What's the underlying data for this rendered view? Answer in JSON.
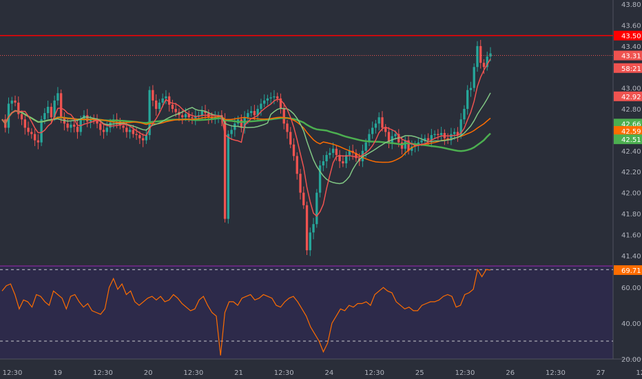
{
  "colors": {
    "background": "#2a2e39",
    "rsi_background": "#2d2a4a",
    "up_candle": "#26a69a",
    "down_candle": "#ef5350",
    "ma_fast": "#ef5350",
    "ma_mid": "#ff6d00",
    "ma_slow_light": "#81c784",
    "ma_slow": "#4caf50",
    "rsi_line": "#ff6d00",
    "level_line": "#ff0000",
    "separator": "#9c27b0"
  },
  "chart_data": [
    {
      "type": "candlestick",
      "name": "price",
      "y_ticks": [
        "43.80",
        "43.60",
        "43.40",
        "43.00",
        "42.80",
        "42.40",
        "42.20",
        "42.00",
        "41.80",
        "41.60",
        "41.40"
      ],
      "ylim": [
        41.3,
        43.84
      ],
      "price_labels": [
        {
          "text": "43.50",
          "value": 43.5,
          "color": "#ff0000"
        },
        {
          "text": "43.31",
          "value": 43.31,
          "color": "#ef5350"
        },
        {
          "text": "58:21",
          "value": 43.19,
          "color": "#ef5350"
        },
        {
          "text": "42.92",
          "value": 42.92,
          "color": "#ef5350"
        },
        {
          "text": "42.66",
          "value": 42.66,
          "color": "#4caf50"
        },
        {
          "text": "42.59",
          "value": 42.59,
          "color": "#ff6d00"
        },
        {
          "text": "42.51",
          "value": 42.51,
          "color": "#4caf50"
        }
      ],
      "levels": [
        {
          "value": 43.5,
          "style": "solid",
          "color": "#ff0000"
        },
        {
          "value": 43.31,
          "style": "dotted",
          "color": "#ef5350"
        }
      ],
      "close_series": [
        42.7,
        42.62,
        42.85,
        42.88,
        42.86,
        42.75,
        42.7,
        42.62,
        42.58,
        42.56,
        42.5,
        42.48,
        42.7,
        42.76,
        42.82,
        42.72,
        42.88,
        42.95,
        42.72,
        42.66,
        42.62,
        42.65,
        42.63,
        42.58,
        42.7,
        42.74,
        42.68,
        42.7,
        42.69,
        42.66,
        42.6,
        42.58,
        42.62,
        42.67,
        42.7,
        42.68,
        42.64,
        42.62,
        42.58,
        42.6,
        42.56,
        42.55,
        42.52,
        42.5,
        42.55,
        42.98,
        42.88,
        42.8,
        42.86,
        42.9,
        42.92,
        42.84,
        42.8,
        42.77,
        42.74,
        42.72,
        42.75,
        42.72,
        42.71,
        42.73,
        42.74,
        42.78,
        42.76,
        42.72,
        42.7,
        42.72,
        42.74,
        42.7,
        41.75,
        42.56,
        42.6,
        42.66,
        42.7,
        42.62,
        42.72,
        42.76,
        42.78,
        42.74,
        42.8,
        42.85,
        42.88,
        42.9,
        42.91,
        42.92,
        42.9,
        42.8,
        42.66,
        42.58,
        42.46,
        42.35,
        42.18,
        42.0,
        41.88,
        41.45,
        41.62,
        41.7,
        42.0,
        42.26,
        42.3,
        42.36,
        42.38,
        42.42,
        42.36,
        42.3,
        42.28,
        42.36,
        42.4,
        42.38,
        42.33,
        42.3,
        42.4,
        42.48,
        42.56,
        42.62,
        42.66,
        42.72,
        42.62,
        42.58,
        42.48,
        42.54,
        42.56,
        42.48,
        42.42,
        42.5,
        42.4,
        42.44,
        42.46,
        42.48,
        42.5,
        42.52,
        42.5,
        42.55,
        42.56,
        42.55,
        42.57,
        42.52,
        42.5,
        42.56,
        42.58,
        42.55,
        42.7,
        42.8,
        42.98,
        43.0,
        43.2,
        43.4,
        43.24,
        43.2,
        43.3,
        43.33
      ]
    },
    {
      "type": "line",
      "name": "oscillator",
      "y_ticks": [
        "60.00",
        "40.00",
        "20.00"
      ],
      "ylim": [
        20,
        72
      ],
      "levels": [
        70,
        30
      ],
      "last_value_label": "69.71",
      "values": [
        58,
        61,
        62,
        56,
        48,
        53,
        52,
        49,
        56,
        55,
        52,
        50,
        58,
        56,
        54,
        48,
        55,
        56,
        52,
        49,
        51,
        47,
        46,
        45,
        48,
        60,
        65,
        59,
        62,
        56,
        58,
        52,
        50,
        52,
        54,
        55,
        53,
        55,
        52,
        53,
        56,
        54,
        51,
        49,
        47,
        48,
        53,
        55,
        50,
        46,
        44,
        22,
        46,
        52,
        52,
        50,
        54,
        55,
        56,
        53,
        54,
        56,
        55,
        54,
        50,
        49,
        52,
        54,
        55,
        52,
        48,
        44,
        38,
        34,
        30,
        24,
        29,
        40,
        44,
        48,
        47,
        50,
        49,
        51,
        51,
        52,
        50,
        56,
        58,
        60,
        58,
        57,
        52,
        50,
        48,
        49,
        47,
        47,
        50,
        51,
        52,
        52,
        53,
        55,
        56,
        55,
        49,
        50,
        56,
        57,
        59,
        70,
        66,
        70,
        69.71
      ],
      "x_ticks": [
        "12:30",
        "19",
        "12:30",
        "20",
        "12:30",
        "21",
        "12:30",
        "24",
        "12:30",
        "25",
        "12:30",
        "26",
        "12:30",
        "27",
        "12:30"
      ]
    }
  ]
}
